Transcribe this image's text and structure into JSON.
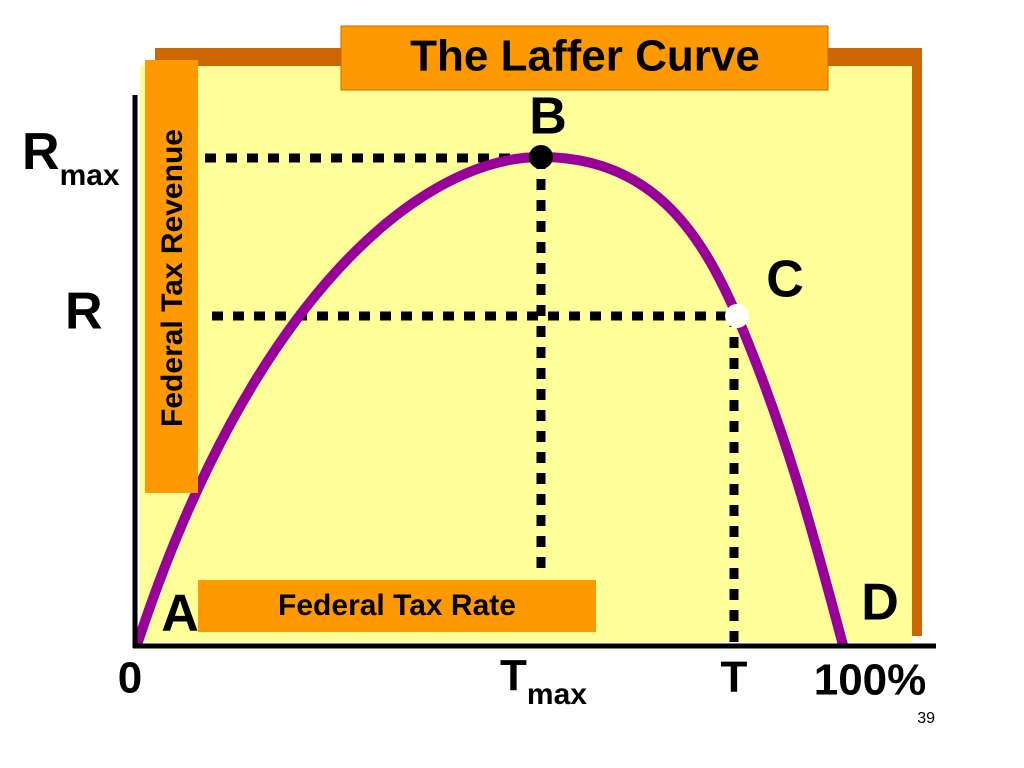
{
  "title": "The Laffer Curve",
  "y_axis_label": "Federal Tax Revenue",
  "x_axis_label": "Federal Tax Rate",
  "points": [
    {
      "label": "A"
    },
    {
      "label": "B"
    },
    {
      "label": "C"
    },
    {
      "label": "D"
    }
  ],
  "y_labels": [
    {
      "main": "R",
      "sub": "max"
    },
    {
      "main": "R"
    }
  ],
  "x_labels": [
    {
      "main": "0"
    },
    {
      "main": "T",
      "sub": "max"
    },
    {
      "main": "T"
    },
    {
      "main": "100%"
    }
  ],
  "page_number": "39"
}
